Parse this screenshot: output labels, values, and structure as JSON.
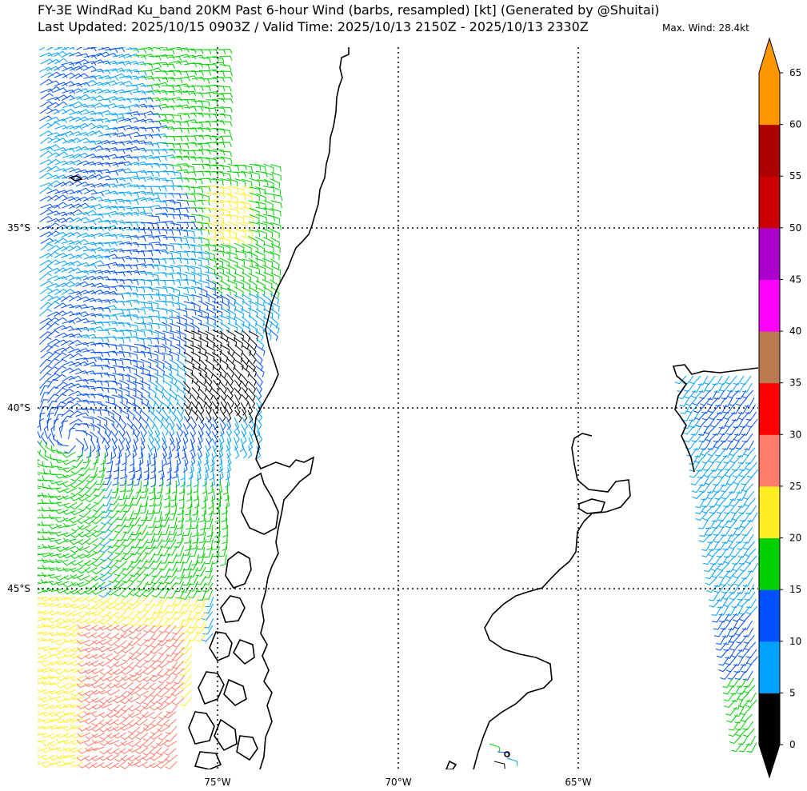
{
  "header": {
    "title_line1": "FY-3E WindRad Ku_band 20KM Past 6-hour Wind (barbs, resampled) [kt] (Generated by @Shuitai)",
    "title_line2": "Last Updated: 2025/10/15 0903Z / Valid Time: 2025/10/13 2150Z - 2025/10/13 2330Z",
    "max_wind": "Max. Wind: 28.4kt"
  },
  "axes": {
    "lon_labels": [
      "75°W",
      "70°W",
      "65°W"
    ],
    "lat_labels": [
      "35°S",
      "40°S",
      "45°S"
    ]
  },
  "colorbar": {
    "ticks": [
      "0",
      "5",
      "10",
      "15",
      "20",
      "25",
      "30",
      "35",
      "40",
      "45",
      "50",
      "55",
      "60",
      "65"
    ],
    "colors": [
      "#000000",
      "#00a0ff",
      "#0050ff",
      "#00d000",
      "#ffee22",
      "#ff7b6b",
      "#ff0000",
      "#b87a4e",
      "#ff00ff",
      "#aa00cc",
      "#cc0000",
      "#aa0000",
      "#ff9500"
    ],
    "under_color": "#000000",
    "over_color": "#ff9500"
  }
}
